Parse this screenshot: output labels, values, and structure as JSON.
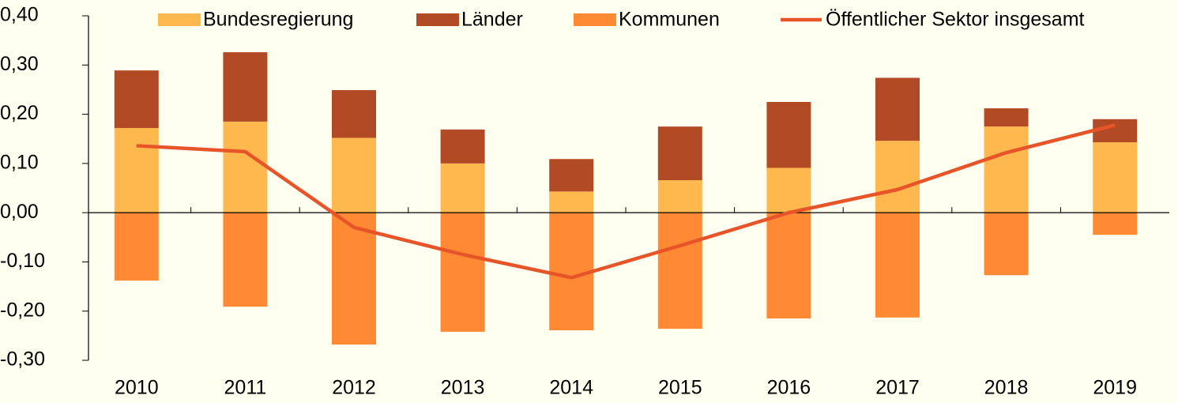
{
  "chart_data": {
    "type": "bar",
    "stacked": true,
    "categories": [
      "2010",
      "2011",
      "2012",
      "2013",
      "2014",
      "2015",
      "2016",
      "2017",
      "2018",
      "2019"
    ],
    "series": [
      {
        "name": "Bundesregierung",
        "color": "#ffb84d",
        "values": [
          0.172,
          0.185,
          0.152,
          0.1,
          0.043,
          0.066,
          0.091,
          0.146,
          0.175,
          0.143
        ]
      },
      {
        "name": "Länder",
        "color": "#b34a26",
        "values": [
          0.117,
          0.141,
          0.097,
          0.069,
          0.066,
          0.109,
          0.134,
          0.128,
          0.037,
          0.047
        ]
      },
      {
        "name": "Kommunen",
        "color": "#ff8a33",
        "values": [
          -0.138,
          -0.191,
          -0.268,
          -0.242,
          -0.239,
          -0.236,
          -0.215,
          -0.213,
          -0.127,
          -0.045
        ]
      },
      {
        "name": "Öffentlicher Sektor insgesamt",
        "color": "#e8542a",
        "type": "line",
        "values": [
          0.136,
          0.124,
          -0.03,
          -0.085,
          -0.132,
          -0.067,
          0.0,
          0.047,
          0.122,
          0.178
        ]
      }
    ],
    "ylim": [
      -0.3,
      0.4
    ],
    "yticks": [
      {
        "value": 0.4,
        "label": "0,40"
      },
      {
        "value": 0.3,
        "label": "0,30"
      },
      {
        "value": 0.2,
        "label": "0,20"
      },
      {
        "value": 0.1,
        "label": "0,10"
      },
      {
        "value": 0,
        "label": "0,00"
      },
      {
        "value": -0.1,
        "label": "-0,10"
      },
      {
        "value": -0.2,
        "label": "-0,20"
      },
      {
        "value": -0.3,
        "label": "-0,30"
      }
    ],
    "legend": "top",
    "grid": false
  }
}
